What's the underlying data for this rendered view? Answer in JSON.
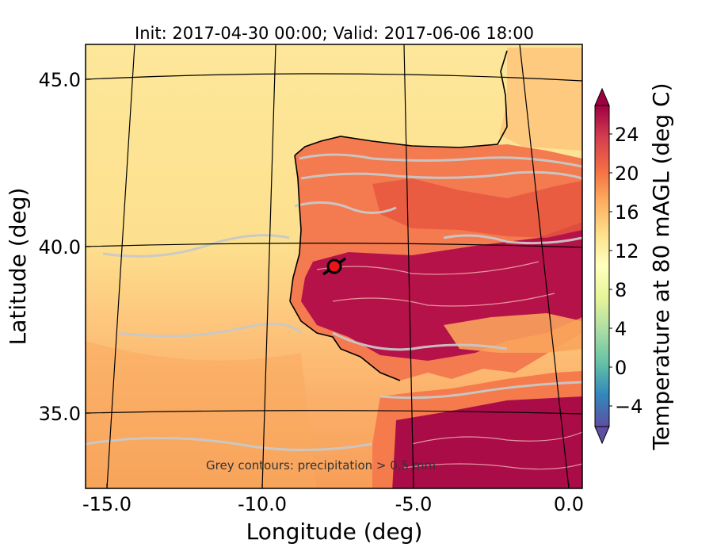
{
  "title": "Init: 2017-04-30 00:00; Valid: 2017-06-06 18:00",
  "x_axis": {
    "label": "Longitude (deg)",
    "ticks": [
      "-15.0",
      "-10.0",
      "-5.0",
      "0.0"
    ]
  },
  "y_axis": {
    "label": "Latitude (deg)",
    "ticks": [
      "45.0",
      "40.0",
      "35.0"
    ]
  },
  "colorbar": {
    "label": "Temperature at 80 mAGL (deg C)",
    "ticks": [
      "24",
      "20",
      "16",
      "12",
      "8",
      "4",
      "0",
      "−4"
    ],
    "colormap": "Spectral_r",
    "colors_low_to_high": [
      "#5e4fa2",
      "#3288bd",
      "#66c2a5",
      "#abdda4",
      "#e6f598",
      "#ffffbf",
      "#fee08b",
      "#fdae61",
      "#f46d43",
      "#d53e4f",
      "#9e0142"
    ]
  },
  "annotation": "Grey contours: precipitation > 0.5 mm",
  "marker": {
    "color": "#e8141a",
    "edge_color": "#000000"
  },
  "colors": {
    "sea_north": "#fde79a",
    "sea_mid": "#fdc77d",
    "sea_south": "#f79e58",
    "land_warm": "#f26b4a",
    "land_hot": "#a30b46",
    "precip_contour": "#c8c8c8"
  }
}
